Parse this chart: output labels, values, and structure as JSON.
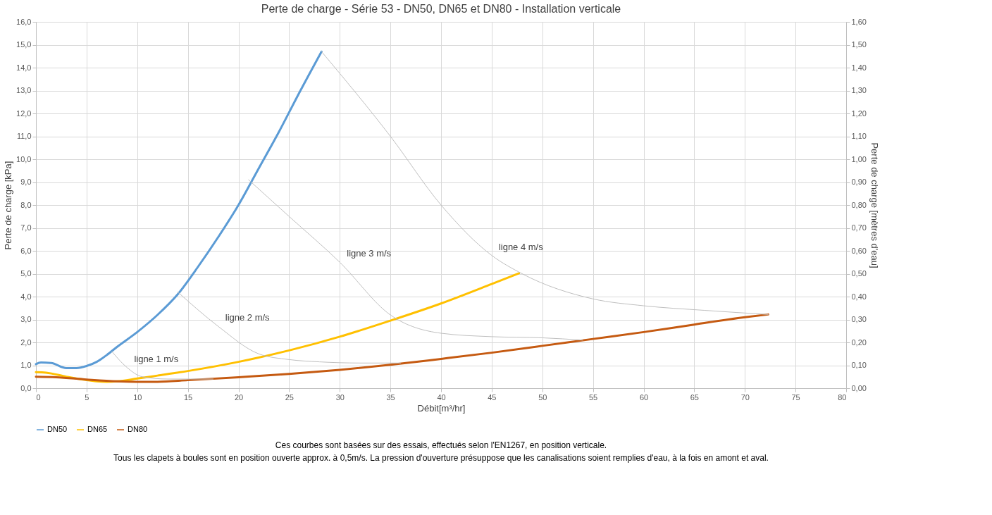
{
  "chart_data": {
    "type": "line",
    "title": "Perte de charge - Série 53 - DN50, DN65 et DN80 - Installation verticale",
    "xlabel": "Débit[m³/hr]",
    "ylabel": "Perte de charge [kPa]",
    "y2label": "Perte de charge [mètres d'eau]",
    "xlim": [
      0,
      80
    ],
    "xticks": [
      0,
      5,
      10,
      15,
      20,
      25,
      30,
      35,
      40,
      45,
      50,
      55,
      60,
      65,
      70,
      75,
      80
    ],
    "ylim": [
      0,
      16
    ],
    "yticks": [
      {
        "value": 0,
        "label": "0,0"
      },
      {
        "value": 1,
        "label": "1,0"
      },
      {
        "value": 2,
        "label": "2,0"
      },
      {
        "value": 3,
        "label": "3,0"
      },
      {
        "value": 4,
        "label": "4,0"
      },
      {
        "value": 5,
        "label": "5,0"
      },
      {
        "value": 6,
        "label": "6,0"
      },
      {
        "value": 7,
        "label": "7,0"
      },
      {
        "value": 8,
        "label": "8,0"
      },
      {
        "value": 9,
        "label": "9,0"
      },
      {
        "value": 10,
        "label": "10,0"
      },
      {
        "value": 11,
        "label": "11,0"
      },
      {
        "value": 12,
        "label": "12,0"
      },
      {
        "value": 13,
        "label": "13,0"
      },
      {
        "value": 14,
        "label": "14,0"
      },
      {
        "value": 15,
        "label": "15,0"
      },
      {
        "value": 16,
        "label": "16,0"
      }
    ],
    "y2lim": [
      0,
      1.6
    ],
    "y2ticks": [
      {
        "value": 0,
        "label": "0,00"
      },
      {
        "value": 0.1,
        "label": "0,10"
      },
      {
        "value": 0.2,
        "label": "0,20"
      },
      {
        "value": 0.3,
        "label": "0,30"
      },
      {
        "value": 0.4,
        "label": "0,40"
      },
      {
        "value": 0.5,
        "label": "0,50"
      },
      {
        "value": 0.6,
        "label": "0,60"
      },
      {
        "value": 0.7,
        "label": "0,70"
      },
      {
        "value": 0.8,
        "label": "0,80"
      },
      {
        "value": 0.9,
        "label": "0,90"
      },
      {
        "value": 1.0,
        "label": "1,00"
      },
      {
        "value": 1.1,
        "label": "1,10"
      },
      {
        "value": 1.2,
        "label": "1,20"
      },
      {
        "value": 1.3,
        "label": "1,30"
      },
      {
        "value": 1.4,
        "label": "1,40"
      },
      {
        "value": 1.5,
        "label": "1,50"
      },
      {
        "value": 1.6,
        "label": "1,60"
      }
    ],
    "grid": true,
    "legend": "bottom",
    "marker": "none",
    "line_style": "solid",
    "series": [
      {
        "name": "DN50",
        "color": "#5b9bd5",
        "x": [
          0,
          0.5,
          1.5,
          3,
          4,
          5,
          6,
          7,
          8,
          10,
          12,
          14,
          16,
          18,
          20,
          22,
          24,
          26,
          28.2
        ],
        "values": [
          1.05,
          1.12,
          1.1,
          0.88,
          0.88,
          0.97,
          1.15,
          1.45,
          1.8,
          2.45,
          3.2,
          4.1,
          5.3,
          6.6,
          8.0,
          9.6,
          11.2,
          12.9,
          14.7
        ]
      },
      {
        "name": "DN65",
        "color": "#ffc000",
        "x": [
          0,
          1,
          3,
          5,
          6,
          7,
          8,
          10,
          12,
          15,
          20,
          25,
          30,
          35,
          40,
          45,
          47.7
        ],
        "values": [
          0.7,
          0.68,
          0.5,
          0.35,
          0.3,
          0.28,
          0.3,
          0.42,
          0.55,
          0.75,
          1.15,
          1.65,
          2.25,
          2.95,
          3.7,
          4.55,
          5.02
        ]
      },
      {
        "name": "DN80",
        "color": "#c55a11",
        "x": [
          0,
          2,
          5,
          8,
          10,
          12,
          15,
          20,
          25,
          30,
          35,
          40,
          45,
          50,
          55,
          60,
          65,
          70,
          72.3
        ],
        "values": [
          0.5,
          0.48,
          0.38,
          0.3,
          0.28,
          0.28,
          0.35,
          0.48,
          0.62,
          0.8,
          1.02,
          1.28,
          1.55,
          1.85,
          2.15,
          2.45,
          2.78,
          3.1,
          3.22
        ]
      },
      {
        "color": "#bfbfbf",
        "x": [
          7.5,
          9,
          10.5,
          13,
          17.5
        ],
        "values": [
          1.6,
          0.9,
          0.5,
          0.4,
          0.4
        ]
      },
      {
        "color": "#bfbfbf",
        "x": [
          14,
          18,
          22,
          25,
          28,
          32,
          36
        ],
        "values": [
          4.2,
          2.7,
          1.5,
          1.25,
          1.15,
          1.1,
          1.1
        ]
      },
      {
        "color": "#bfbfbf",
        "x": [
          21,
          25,
          30,
          35,
          40,
          45,
          50,
          54
        ],
        "values": [
          9.1,
          7.5,
          5.5,
          3.2,
          2.4,
          2.25,
          2.2,
          2.1
        ]
      },
      {
        "color": "#bfbfbf",
        "x": [
          28.2,
          35,
          40,
          45,
          48,
          55,
          60,
          66,
          72.3
        ],
        "values": [
          14.7,
          11,
          8,
          5.8,
          5.0,
          3.9,
          3.6,
          3.4,
          3.22
        ]
      }
    ],
    "annotations": [
      {
        "text": "ligne 1 m/s",
        "x": 9,
        "y": 0.9
      },
      {
        "text": "ligne 2 m/s",
        "x": 18,
        "y": 2.7
      },
      {
        "text": "ligne 3 m/s",
        "x": 30,
        "y": 5.5
      },
      {
        "text": "ligne 4 m/s",
        "x": 45,
        "y": 5.8
      },
      "Ces courbes sont basées sur des essais, effectués selon l'EN1267, en position verticale.",
      "Tous les clapets à boules sont en position ouverte approx. à 0,5m/s. La pression d'ouverture présuppose que les canalisations soient remplies d'eau, à la fois en amont et aval."
    ]
  }
}
